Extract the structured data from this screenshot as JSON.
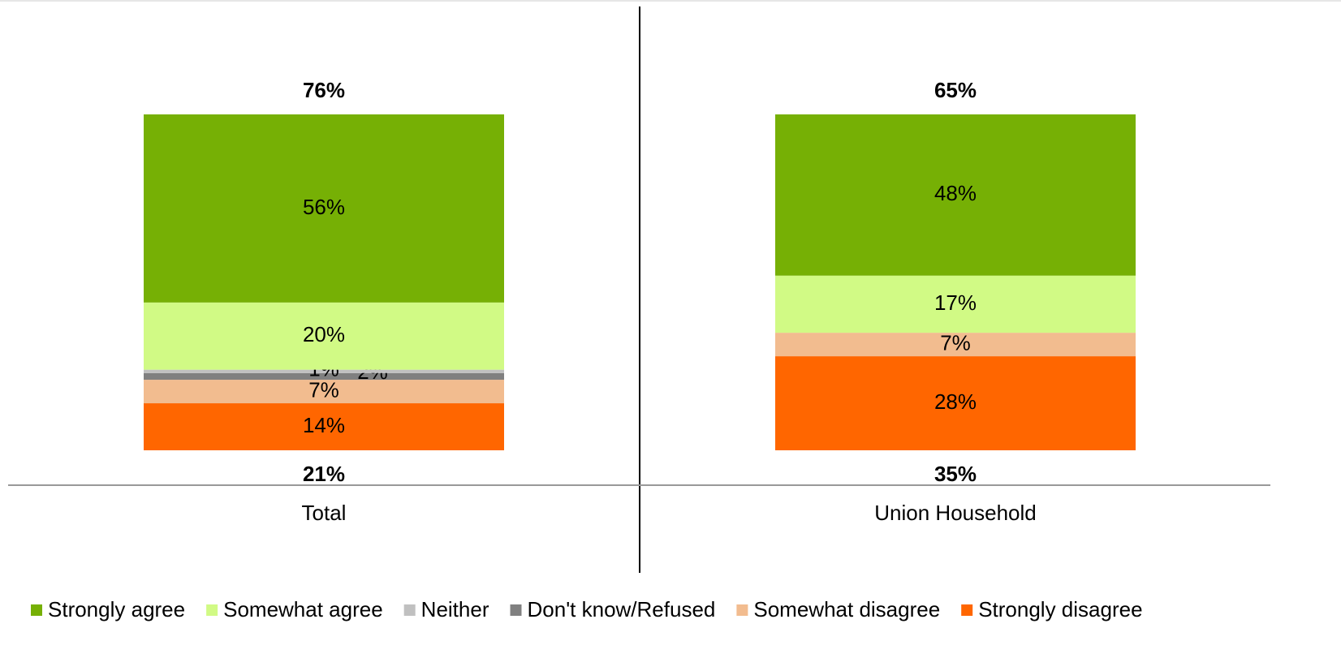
{
  "chart_data": {
    "type": "stacked_bar",
    "categories": [
      "Total",
      "Union Household"
    ],
    "ylim": [
      0,
      100
    ],
    "series": [
      {
        "name": "Strongly agree",
        "color": "#76b005",
        "values": [
          56,
          48
        ],
        "value_labels": [
          "56%",
          "48%"
        ]
      },
      {
        "name": "Somewhat agree",
        "color": "#d1fa85",
        "values": [
          20,
          17
        ],
        "value_labels": [
          "20%",
          "17%"
        ]
      },
      {
        "name": "Neither",
        "color": "#c0c0c0",
        "values": [
          1,
          null
        ],
        "value_labels": [
          "1%",
          null
        ]
      },
      {
        "name": "Don't know/Refused",
        "color": "#808080",
        "values": [
          2,
          null
        ],
        "value_labels": [
          "2%",
          null
        ]
      },
      {
        "name": "Somewhat disagree",
        "color": "#f2bc8f",
        "values": [
          7,
          7
        ],
        "value_labels": [
          "7%",
          "7%"
        ]
      },
      {
        "name": "Strongly disagree",
        "color": "#ff6600",
        "values": [
          14,
          28
        ],
        "value_labels": [
          "14%",
          "28%"
        ]
      }
    ],
    "top_totals": {
      "values": [
        76,
        65
      ],
      "value_labels": [
        "76%",
        "65%"
      ]
    },
    "bottom_totals": {
      "values": [
        21,
        35
      ],
      "value_labels": [
        "21%",
        "35%"
      ]
    },
    "legend": "bottom"
  }
}
